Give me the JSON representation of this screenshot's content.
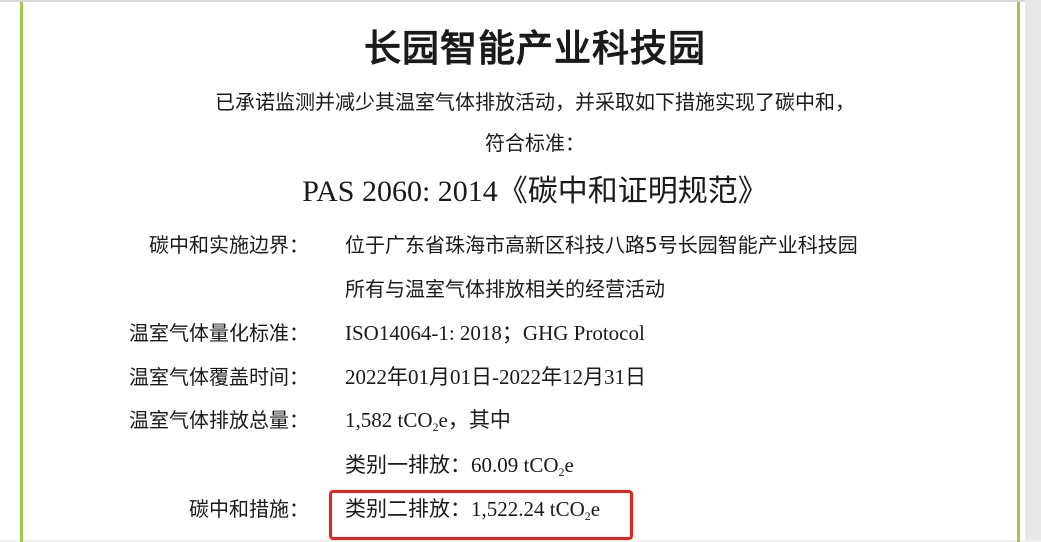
{
  "title": "长园智能产业科技园",
  "intro_line1": "已承诺监测并减少其温室气体排放活动，并采取如下措施实现了碳中和，",
  "intro_line2": "符合标准：",
  "standard": "PAS 2060: 2014《碳中和证明规范》",
  "fields": [
    {
      "label": "碳中和实施边界：",
      "value": "位于广东省珠海市高新区科技八路5号长园智能产业科技园",
      "value2": "所有与温室气体排放相关的经营活动"
    },
    {
      "label": "温室气体量化标准：",
      "value": "ISO14064-1: 2018；GHG Protocol"
    },
    {
      "label": "温室气体覆盖时间：",
      "value": "2022年01月01日-2022年12月31日"
    },
    {
      "label": "温室气体排放总量：",
      "value_pre": "1,582 tCO",
      "value_sub": "2",
      "value_post": "e，其中"
    },
    {
      "value_pre": "类别一排放：60.09 tCO",
      "value_sub": "2",
      "value_post": "e"
    },
    {
      "label": "碳中和措施：",
      "value_pre": "类别二排放：1,522.24 tCO",
      "value_sub": "2",
      "value_post": "e"
    }
  ],
  "colors": {
    "accent_green": "#9dc84a",
    "highlight_red": "#e8231f"
  }
}
